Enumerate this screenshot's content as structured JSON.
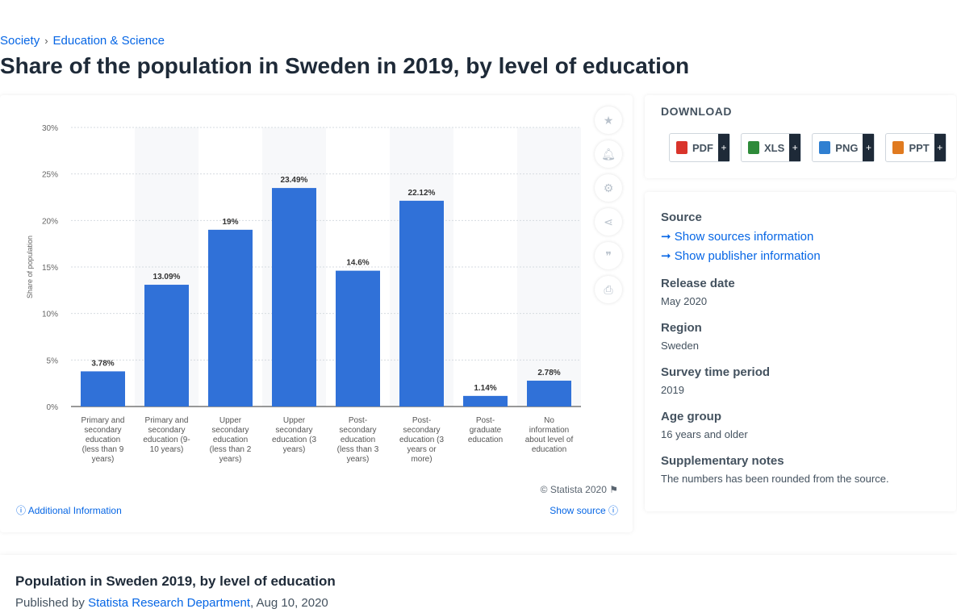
{
  "breadcrumb": {
    "level1": "Society",
    "separator": "›",
    "level2": "Education & Science"
  },
  "page_title": "Share of the population in Sweden in 2019, by level of education",
  "chart_data": {
    "type": "bar",
    "ylabel": "Share of population",
    "ylim": [
      0,
      30
    ],
    "yticks": [
      "0%",
      "5%",
      "10%",
      "15%",
      "20%",
      "25%",
      "30%"
    ],
    "grid": true,
    "bar_color": "#3071d8",
    "categories": [
      [
        "Primary and",
        "secondary",
        "education",
        "(less than 9",
        "years)"
      ],
      [
        "Primary and",
        "secondary",
        "education (9-",
        "10 years)"
      ],
      [
        "Upper",
        "secondary",
        "education",
        "(less than 2",
        "years)"
      ],
      [
        "Upper",
        "secondary",
        "education (3",
        "years)"
      ],
      [
        "Post-",
        "secondary",
        "education",
        "(less than 3",
        "years)"
      ],
      [
        "Post-",
        "secondary",
        "education (3",
        "years or",
        "more)"
      ],
      [
        "Post-",
        "graduate",
        "education"
      ],
      [
        "No",
        "information",
        "about level of",
        "education"
      ]
    ],
    "values": [
      3.78,
      13.09,
      19,
      23.49,
      14.6,
      22.12,
      1.14,
      2.78
    ],
    "value_labels": [
      "3.78%",
      "13.09%",
      "19%",
      "23.49%",
      "14.6%",
      "22.12%",
      "1.14%",
      "2.78%"
    ]
  },
  "chart_footer": {
    "copyright": "© Statista 2020",
    "additional_info": "Additional Information",
    "show_source": "Show source"
  },
  "toolbar_icons": [
    "star-icon",
    "bell-icon",
    "gear-icon",
    "share-icon",
    "quote-icon",
    "print-icon"
  ],
  "download": {
    "title": "DOWNLOAD",
    "buttons": [
      {
        "label": "PDF",
        "color": "#d9342b"
      },
      {
        "label": "XLS",
        "color": "#2e8b3a"
      },
      {
        "label": "PNG",
        "color": "#2f7fd1"
      },
      {
        "label": "PPT",
        "color": "#e07a1f"
      }
    ],
    "plus": "+"
  },
  "info": {
    "source_heading": "Source",
    "sources_link": "Show sources information",
    "publisher_link": "Show publisher information",
    "release_heading": "Release date",
    "release_value": "May 2020",
    "region_heading": "Region",
    "region_value": "Sweden",
    "survey_heading": "Survey time period",
    "survey_value": "2019",
    "age_heading": "Age group",
    "age_value": "16 years and older",
    "notes_heading": "Supplementary notes",
    "notes_value": "The numbers has been rounded from the source."
  },
  "publication": {
    "title": "Population in Sweden 2019, by level of education",
    "published_by": "Published by",
    "author": "Statista Research Department",
    "date": ", Aug 10, 2020"
  }
}
